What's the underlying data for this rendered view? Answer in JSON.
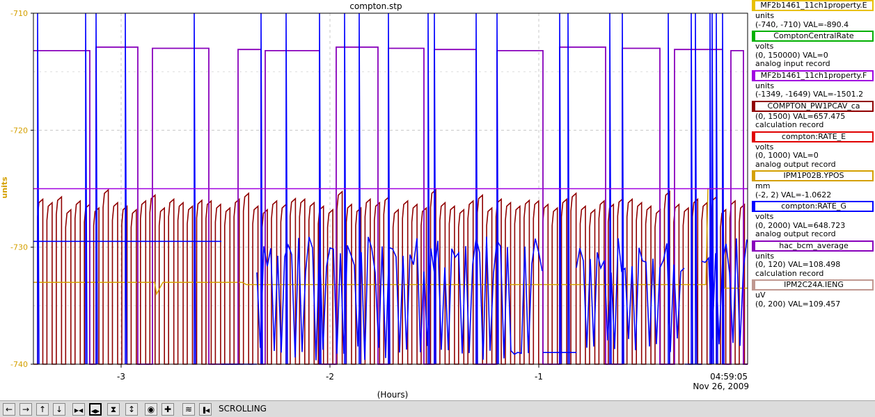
{
  "chart_data": {
    "type": "line",
    "title": "compton.stp",
    "xlabel": "(Hours)",
    "ylabel": "units",
    "xlim": [
      -3.42,
      0
    ],
    "ylim": [
      -740,
      -710
    ],
    "x_ticks": [
      -3,
      -2,
      -1
    ],
    "x_tick_labels": [
      "-3",
      "-2",
      "-1"
    ],
    "y_ticks": [
      -740,
      -730,
      -720,
      -710
    ],
    "y_tick_labels": [
      "-740",
      "-730",
      "-720",
      "-710"
    ],
    "end_time": "04:59:05",
    "end_date": "Nov 26, 2009",
    "grid": true,
    "legend_position": "right",
    "series": [
      {
        "name": "MF2b1461_11ch1property.E",
        "color": "#e8c000",
        "unit": "units",
        "range": "(-740, -710)",
        "value": "-890.4",
        "description": ""
      },
      {
        "name": "ComptonCentralRate",
        "color": "#00b000",
        "unit": "volts",
        "range": "(0, 150000)",
        "value": "0",
        "description": "analog input record"
      },
      {
        "name": "MF2b1461_11ch1property.F",
        "color": "#a000e0",
        "unit": "units",
        "range": "(-1349, -1649)",
        "value": "-1501.2",
        "description": ""
      },
      {
        "name": "COMPTON_PW1PCAV_ca",
        "color": "#900000",
        "unit": "",
        "range": "(0, 1500)",
        "value": "657.475",
        "description": "calculation record"
      },
      {
        "name": "compton:RATE_E",
        "color": "#e00000",
        "unit": "volts",
        "range": "(0, 1000)",
        "value": "0",
        "description": "analog output record"
      },
      {
        "name": "IPM1P02B.YPOS",
        "color": "#d4a000",
        "unit": "mm",
        "range": "(-2, 2)",
        "value": "-1.0622",
        "description": ""
      },
      {
        "name": "compton:RATE_G",
        "color": "#0000ff",
        "unit": "volts",
        "range": "(0, 2000)",
        "value": "648.723",
        "description": "analog output record"
      },
      {
        "name": "hac_bcm_average",
        "color": "#8800bb",
        "unit": "units",
        "range": "(0, 120)",
        "value": "108.498",
        "description": "calculation record"
      },
      {
        "name": "IPM2C24A.IENG",
        "color": "#c09890",
        "unit": "uV",
        "range": "(0, 200)",
        "value": "109.457",
        "description": ""
      }
    ],
    "traces": {
      "flat_purple": {
        "color": "#a000e0",
        "y": -725.0
      },
      "orange": {
        "color": "#d4a000",
        "points": [
          [
            -3.42,
            -733.0
          ],
          [
            -2.84,
            -733.0
          ],
          [
            -2.83,
            -734.0
          ],
          [
            -2.8,
            -733.0
          ],
          [
            -2.42,
            -733.0
          ],
          [
            -2.4,
            -733.2
          ],
          [
            -0.2,
            -733.2
          ],
          [
            -0.19,
            -725.0
          ],
          [
            -0.12,
            -725.0
          ],
          [
            -0.11,
            -733.5
          ],
          [
            0,
            -733.5
          ]
        ]
      },
      "purple_high_segments": [
        [
          -3.42,
          -3.15
        ],
        [
          -3.12,
          -2.92
        ],
        [
          -2.85,
          -2.58
        ],
        [
          -2.44,
          -2.33
        ],
        [
          -2.31,
          -2.05
        ],
        [
          -1.97,
          -1.77
        ],
        [
          -1.72,
          -1.55
        ],
        [
          -1.5,
          -1.3
        ],
        [
          -1.2,
          -0.98
        ],
        [
          -0.9,
          -0.68
        ],
        [
          -0.6,
          -0.42
        ],
        [
          -0.35,
          -0.12
        ],
        [
          -0.08,
          -0.02
        ]
      ],
      "purple_high_y": -713.2,
      "purple_low_y": -740.0,
      "darkred_pulse_start": -3.4,
      "darkred_pulse_period": 0.0448,
      "darkred_pulse_width": 0.025,
      "darkred_high_y": -726.2,
      "darkred_low_y": -740.0,
      "blue": {
        "color": "#0000ff",
        "segments": [
          {
            "x0": -3.42,
            "x1": -2.52,
            "type": "flat",
            "y": -729.5
          },
          {
            "x0": -2.52,
            "x1": -2.35,
            "type": "flat",
            "y": -740.0
          },
          {
            "x0": -2.35,
            "x1": -0.98,
            "type": "osc",
            "hi": -730.5,
            "lo": -739.0
          },
          {
            "x0": -0.98,
            "x1": -0.82,
            "type": "flat",
            "y": -739.0
          },
          {
            "x0": -0.82,
            "x1": -0.3,
            "type": "osc",
            "hi": -731.0,
            "lo": -738.5
          },
          {
            "x0": -0.3,
            "x1": -0.22,
            "type": "flat",
            "y": -740.0
          },
          {
            "x0": -0.22,
            "x1": 0,
            "type": "osc",
            "hi": -731.0,
            "lo": -738.0
          }
        ],
        "spikes": [
          -3.4,
          -3.17,
          -3.12,
          -2.98,
          -2.65,
          -2.33,
          -2.21,
          -2.05,
          -1.93,
          -1.86,
          -1.72,
          -1.53,
          -1.5,
          -1.3,
          -1.2,
          -0.9,
          -0.86,
          -0.66,
          -0.6,
          -0.38,
          -0.27,
          -0.25,
          -0.18,
          -0.17,
          -0.15,
          -0.12
        ]
      }
    }
  },
  "toolbar": {
    "status": "SCROLLING",
    "buttons": [
      {
        "name": "scroll-left-button",
        "icon": "arrow-left-icon",
        "glyph": "←"
      },
      {
        "name": "scroll-right-button",
        "icon": "arrow-right-icon",
        "glyph": "→"
      },
      {
        "name": "scroll-up-button",
        "icon": "arrow-up-icon",
        "glyph": "↑"
      },
      {
        "name": "scroll-down-button",
        "icon": "arrow-down-icon",
        "glyph": "↓"
      },
      {
        "name": "zoom-x-in-button",
        "icon": "zoom-x-in-icon",
        "glyph": "▶◀"
      },
      {
        "name": "zoom-x-out-button",
        "icon": "zoom-x-out-icon",
        "glyph": "◀▶"
      },
      {
        "name": "zoom-y-in-button",
        "icon": "zoom-y-in-icon",
        "glyph": "⧗"
      },
      {
        "name": "zoom-y-out-button",
        "icon": "zoom-y-out-icon",
        "glyph": "↕"
      },
      {
        "name": "auto-scale-button",
        "icon": "record-icon",
        "glyph": "◉"
      },
      {
        "name": "add-button",
        "icon": "plus-icon",
        "glyph": "✚"
      },
      {
        "name": "fit-button",
        "icon": "fit-icon",
        "glyph": "≋"
      },
      {
        "name": "pause-button",
        "icon": "pause-left-icon",
        "glyph": "▐◀"
      }
    ]
  }
}
